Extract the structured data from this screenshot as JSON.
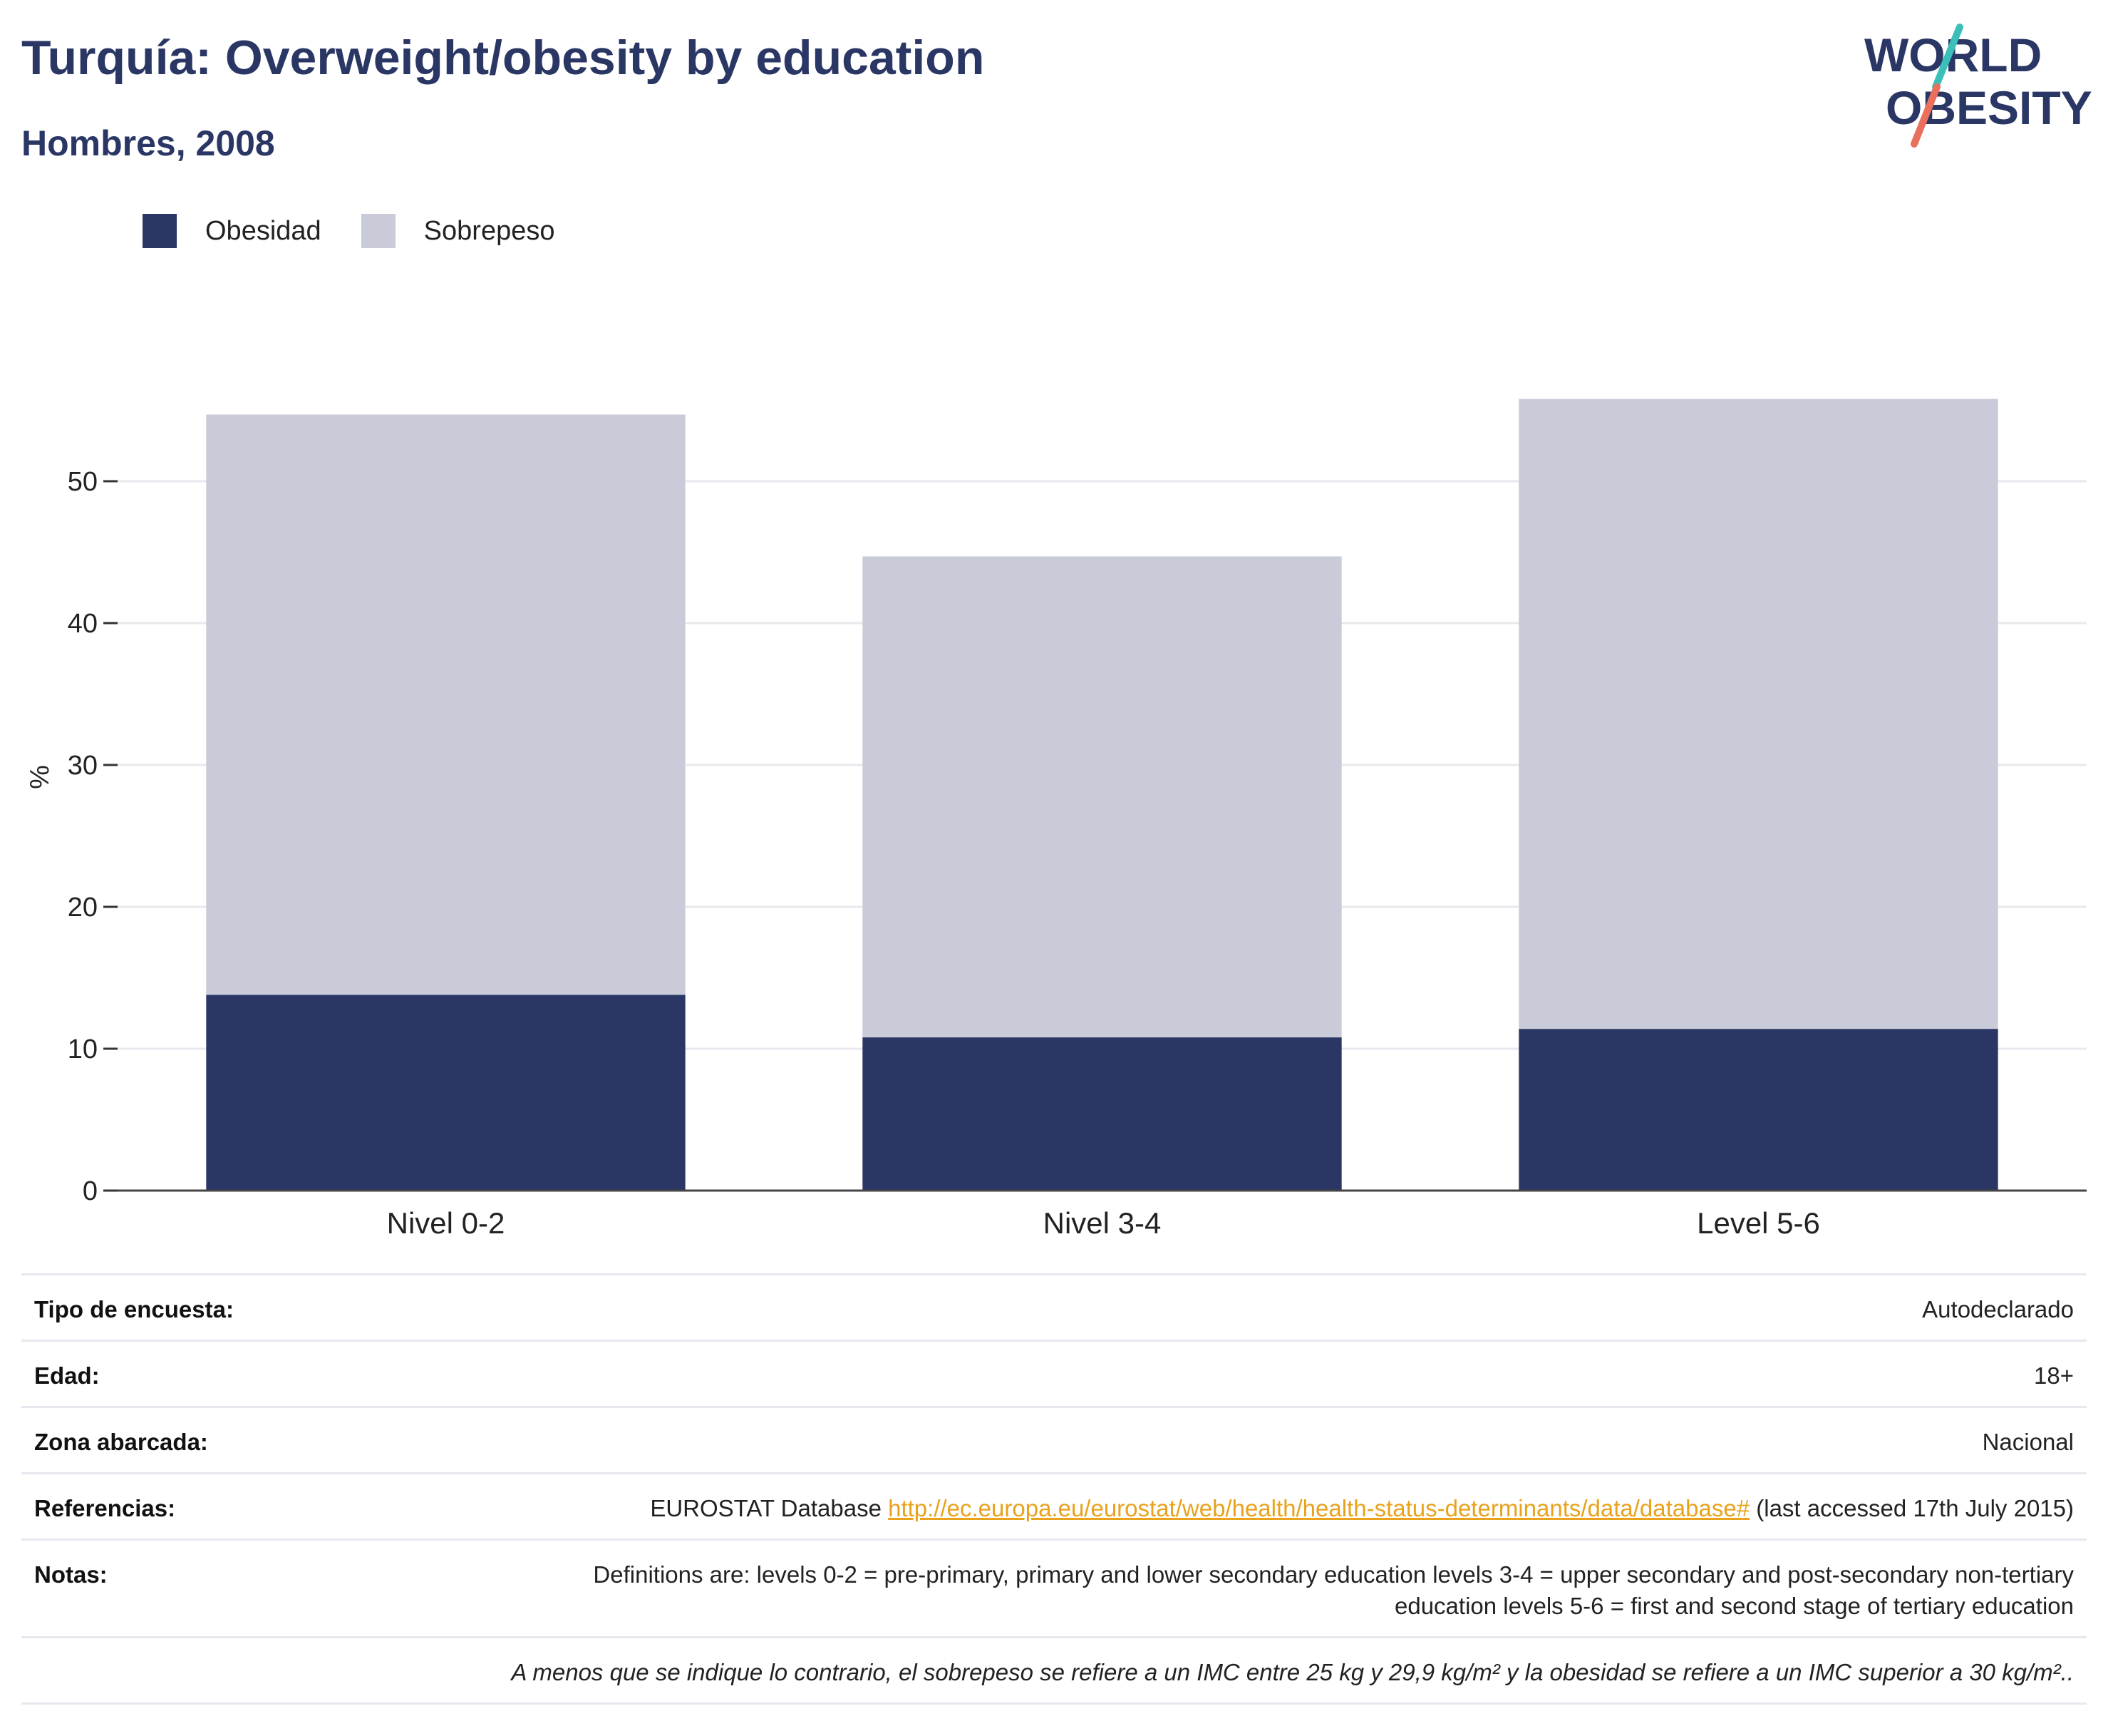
{
  "header": {
    "title": "Turquía: Overweight/obesity by education",
    "subtitle": "Hombres, 2008"
  },
  "logo": {
    "line1": "WORLD",
    "line2": "OBESITY",
    "colors": {
      "navy": "#2a3664",
      "teal": "#3bbfb9",
      "coral": "#e8705c"
    }
  },
  "chart_data": {
    "type": "bar",
    "stacked": true,
    "categories": [
      "Nivel 0-2",
      "Nivel 3-4",
      "Level 5-6"
    ],
    "series": [
      {
        "name": "Obesidad",
        "color": "#2a3664",
        "values": [
          13.8,
          10.8,
          11.4
        ]
      },
      {
        "name": "Sobrepeso",
        "color": "#c9ccd8",
        "values": [
          40.9,
          33.9,
          44.4
        ]
      }
    ],
    "ylabel": "%",
    "ylim": [
      0,
      57
    ],
    "yticks": [
      0,
      10,
      20,
      30,
      40,
      50
    ],
    "grid": true,
    "legend_position": "top-left"
  },
  "meta": {
    "survey_type": {
      "label": "Tipo de encuesta:",
      "value": "Autodeclarado"
    },
    "age": {
      "label": "Edad:",
      "value": "18+"
    },
    "area": {
      "label": "Zona abarcada:",
      "value": "Nacional"
    },
    "references": {
      "label": "Referencias:",
      "prefix": "EUROSTAT Database ",
      "link": "http://ec.europa.eu/eurostat/web/health/health-status-determinants/data/database#",
      "suffix": " (last accessed 17th July 2015)"
    },
    "notes": {
      "label": "Notas:",
      "value": "Definitions are: levels 0-2 = pre-primary, primary and lower secondary education levels 3-4 = upper secondary and post-secondary non-tertiary education levels 5-6 = first and second stage of tertiary education"
    },
    "footnote": "A menos que se indique lo contrario, el sobrepeso se refiere a un IMC entre 25 kg y 29,9 kg/m² y la obesidad se refiere a un IMC superior a 30 kg/m².."
  }
}
